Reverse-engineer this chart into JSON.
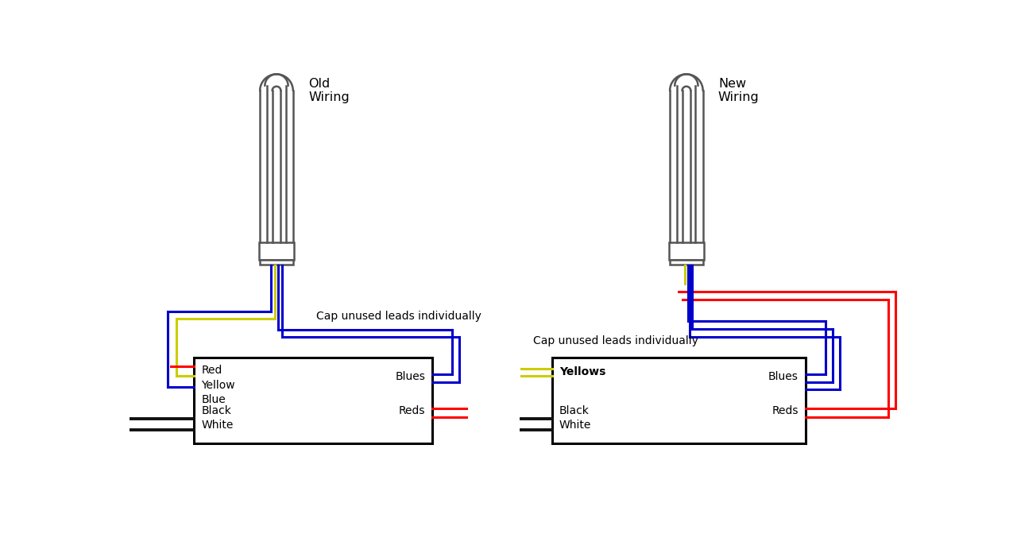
{
  "bg_color": "#ffffff",
  "title_old": "Old\nWiring",
  "title_new": "New\nWiring",
  "cap_label": "Cap unused leads individually",
  "left_box_labels_left1": "Red\nYellow\nBlue",
  "left_box_labels_left2": "Black\nWhite",
  "left_box_labels_right1": "Blues",
  "left_box_labels_right2": "Reds",
  "right_box_labels_left1": "Yellows",
  "right_box_labels_left2": "Black\nWhite",
  "right_box_labels_right1": "Blues",
  "right_box_labels_right2": "Reds",
  "wire_red": "#ff0000",
  "wire_yellow": "#cccc00",
  "wire_blue": "#0000cc",
  "wire_black": "#111111",
  "bulb_color": "#555555",
  "lw": 2.2,
  "lw_black": 2.8
}
